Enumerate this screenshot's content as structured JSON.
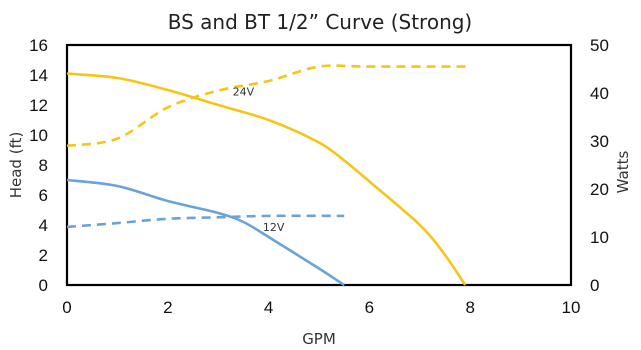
{
  "chart_data": {
    "type": "line",
    "title": "BS and BT 1/2” Curve (Strong)",
    "xlabel": "GPM",
    "ylabel": "Head (ft)",
    "y2label": "Watts",
    "xlim": [
      0,
      10
    ],
    "ylim": [
      0,
      16
    ],
    "y2lim": [
      0,
      50
    ],
    "x_ticks": [
      "0",
      "2",
      "4",
      "6",
      "8",
      "10"
    ],
    "y_ticks": [
      "0",
      "2",
      "4",
      "6",
      "8",
      "10",
      "12",
      "14",
      "16"
    ],
    "y2_ticks": [
      "0",
      "10",
      "20",
      "30",
      "40",
      "50"
    ],
    "grid": false,
    "legend": "none",
    "series": [
      {
        "axis": "left",
        "style": "solid",
        "color": "#F5C518",
        "x": [
          0,
          1,
          2,
          3,
          4,
          5,
          5.5,
          6,
          7,
          7.5,
          7.9
        ],
        "y": [
          14.1,
          13.8,
          13.0,
          12.0,
          11.0,
          9.5,
          8.3,
          6.9,
          4.0,
          2.0,
          0
        ]
      },
      {
        "axis": "left",
        "style": "solid",
        "color": "#6AA3D9",
        "x": [
          0,
          1,
          2,
          3,
          3.5,
          4,
          5,
          5.5
        ],
        "y": [
          7.0,
          6.6,
          5.6,
          4.8,
          4.2,
          3.2,
          1.1,
          0
        ]
      },
      {
        "axis": "right",
        "style": "dashed",
        "color": "#F5C518",
        "x": [
          0,
          1,
          2,
          3,
          4,
          5,
          6,
          8
        ],
        "y": [
          29,
          30.5,
          37,
          40.5,
          42.5,
          45.5,
          45.5,
          45.5
        ]
      },
      {
        "axis": "right",
        "style": "dashed",
        "color": "#6AA3D9",
        "x": [
          0,
          1,
          2,
          3,
          4,
          5.5
        ],
        "y": [
          12.1,
          12.9,
          13.8,
          14.1,
          14.4,
          14.4
        ]
      }
    ],
    "annotations": [
      {
        "text": "24V",
        "x": 3.5,
        "y2": 39.5
      },
      {
        "text": "12V",
        "x": 4.1,
        "y2": 11.2
      }
    ]
  }
}
